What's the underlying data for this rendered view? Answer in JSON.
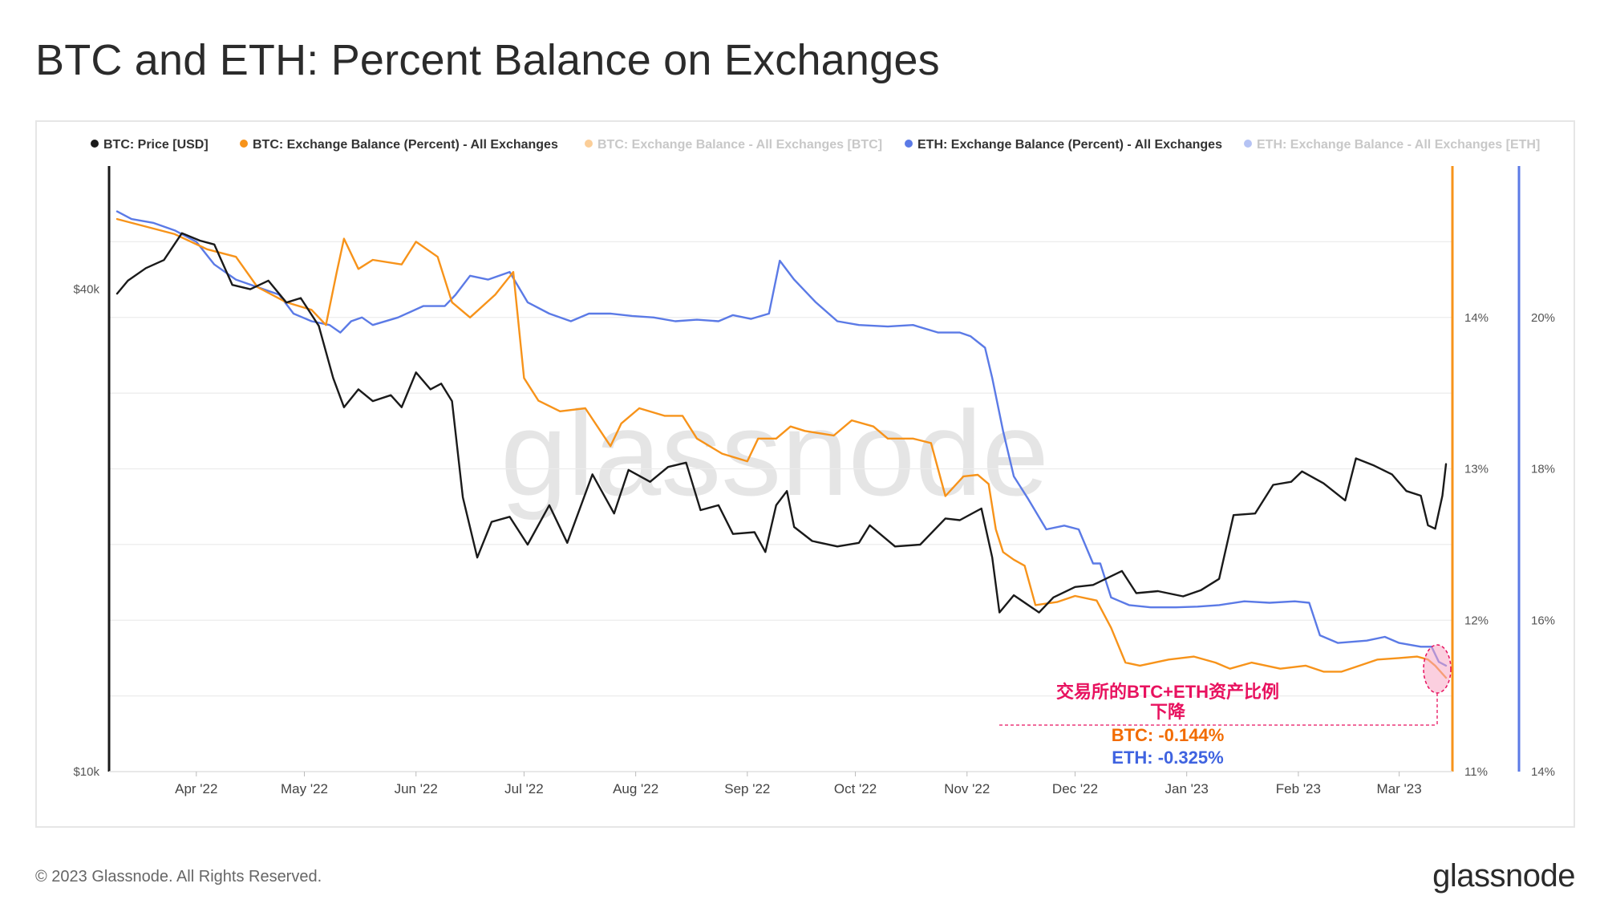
{
  "title": "BTC and ETH: Percent Balance on Exchanges",
  "footer": {
    "copyright": "© 2023 Glassnode. All Rights Reserved.",
    "logo": "glassnode"
  },
  "watermark": "glassnode",
  "colors": {
    "btc_price": "#1a1a1a",
    "btc_pct": "#f7931a",
    "btc_balance_dim": "#f8c88c",
    "eth_pct": "#5b7ae6",
    "eth_balance_dim": "#aebaf0",
    "annotation_red": "#e8125f",
    "annotation_btc": "#f26b00",
    "annotation_eth": "#3f63e0"
  },
  "chart_data": {
    "type": "line",
    "legend_position": "top",
    "legend": [
      {
        "label": "BTC: Price [USD]",
        "color": "#1a1a1a",
        "active": true
      },
      {
        "label": "BTC: Exchange Balance (Percent) - All Exchanges",
        "color": "#f7931a",
        "active": true
      },
      {
        "label": "BTC: Exchange Balance - All Exchanges [BTC]",
        "color": "#f7931a",
        "active": false
      },
      {
        "label": "ETH: Exchange Balance (Percent) - All Exchanges",
        "color": "#5b7ae6",
        "active": true
      },
      {
        "label": "ETH: Exchange Balance - All Exchanges [ETH]",
        "color": "#5b7ae6",
        "active": false
      }
    ],
    "x_ticks": [
      "Apr '22",
      "May '22",
      "Jun '22",
      "Jul '22",
      "Aug '22",
      "Sep '22",
      "Oct '22",
      "Nov '22",
      "Dec '22",
      "Jan '23",
      "Feb '23",
      "Mar '23"
    ],
    "x_range": [
      "2022-03-10",
      "2023-03-14"
    ],
    "y_left": {
      "scale": "log",
      "ticks": [
        "$40k",
        "$10k"
      ],
      "range_usd": [
        10000,
        57000
      ]
    },
    "y_right_btc": {
      "ticks": [
        "14%",
        "13%",
        "12%",
        "11%"
      ],
      "range_pct": [
        11,
        15
      ]
    },
    "y_right_eth": {
      "ticks": [
        "20%",
        "18%",
        "16%",
        "14%"
      ],
      "range_pct": [
        14,
        22
      ]
    },
    "grid": true,
    "series": [
      {
        "name": "BTC: Price [USD]",
        "axis": "left",
        "points": [
          [
            "2022-03-10",
            39500
          ],
          [
            "2022-03-13",
            41000
          ],
          [
            "2022-03-18",
            42500
          ],
          [
            "2022-03-23",
            43500
          ],
          [
            "2022-03-28",
            47000
          ],
          [
            "2022-04-02",
            46000
          ],
          [
            "2022-04-06",
            45500
          ],
          [
            "2022-04-11",
            40500
          ],
          [
            "2022-04-16",
            40000
          ],
          [
            "2022-04-21",
            41000
          ],
          [
            "2022-04-26",
            38500
          ],
          [
            "2022-04-30",
            39000
          ],
          [
            "2022-05-05",
            36000
          ],
          [
            "2022-05-09",
            31000
          ],
          [
            "2022-05-12",
            28500
          ],
          [
            "2022-05-16",
            30000
          ],
          [
            "2022-05-20",
            29000
          ],
          [
            "2022-05-25",
            29500
          ],
          [
            "2022-05-28",
            28500
          ],
          [
            "2022-06-01",
            31500
          ],
          [
            "2022-06-05",
            30000
          ],
          [
            "2022-06-08",
            30500
          ],
          [
            "2022-06-11",
            29000
          ],
          [
            "2022-06-14",
            22000
          ],
          [
            "2022-06-18",
            18500
          ],
          [
            "2022-06-22",
            20500
          ],
          [
            "2022-06-27",
            20800
          ],
          [
            "2022-07-02",
            19200
          ],
          [
            "2022-07-08",
            21500
          ],
          [
            "2022-07-13",
            19300
          ],
          [
            "2022-07-20",
            23500
          ],
          [
            "2022-07-26",
            21000
          ],
          [
            "2022-07-30",
            23800
          ],
          [
            "2022-08-05",
            23000
          ],
          [
            "2022-08-10",
            24000
          ],
          [
            "2022-08-15",
            24300
          ],
          [
            "2022-08-19",
            21200
          ],
          [
            "2022-08-24",
            21500
          ],
          [
            "2022-08-28",
            19800
          ],
          [
            "2022-09-03",
            19900
          ],
          [
            "2022-09-06",
            18800
          ],
          [
            "2022-09-09",
            21500
          ],
          [
            "2022-09-12",
            22400
          ],
          [
            "2022-09-14",
            20200
          ],
          [
            "2022-09-19",
            19400
          ],
          [
            "2022-09-26",
            19100
          ],
          [
            "2022-10-02",
            19300
          ],
          [
            "2022-10-05",
            20300
          ],
          [
            "2022-10-12",
            19100
          ],
          [
            "2022-10-19",
            19200
          ],
          [
            "2022-10-26",
            20700
          ],
          [
            "2022-10-30",
            20600
          ],
          [
            "2022-11-05",
            21300
          ],
          [
            "2022-11-08",
            18500
          ],
          [
            "2022-11-10",
            15800
          ],
          [
            "2022-11-14",
            16600
          ],
          [
            "2022-11-21",
            15800
          ],
          [
            "2022-11-25",
            16500
          ],
          [
            "2022-12-01",
            17000
          ],
          [
            "2022-12-06",
            17100
          ],
          [
            "2022-12-14",
            17800
          ],
          [
            "2022-12-18",
            16700
          ],
          [
            "2022-12-24",
            16800
          ],
          [
            "2022-12-31",
            16550
          ],
          [
            "2023-01-05",
            16850
          ],
          [
            "2023-01-10",
            17400
          ],
          [
            "2023-01-14",
            20900
          ],
          [
            "2023-01-20",
            21000
          ],
          [
            "2023-01-25",
            22800
          ],
          [
            "2023-01-30",
            23000
          ],
          [
            "2023-02-02",
            23700
          ],
          [
            "2023-02-08",
            22900
          ],
          [
            "2023-02-14",
            21800
          ],
          [
            "2023-02-17",
            24600
          ],
          [
            "2023-02-22",
            24100
          ],
          [
            "2023-02-27",
            23500
          ],
          [
            "2023-03-03",
            22400
          ],
          [
            "2023-03-07",
            22100
          ],
          [
            "2023-03-09",
            20300
          ],
          [
            "2023-03-11",
            20100
          ],
          [
            "2023-03-13",
            22100
          ],
          [
            "2023-03-14",
            24200
          ]
        ]
      },
      {
        "name": "BTC: Exchange Balance (Percent) - All Exchanges",
        "axis": "right_btc",
        "points": [
          [
            "2022-03-10",
            14.65
          ],
          [
            "2022-03-18",
            14.6
          ],
          [
            "2022-03-26",
            14.55
          ],
          [
            "2022-04-04",
            14.45
          ],
          [
            "2022-04-12",
            14.4
          ],
          [
            "2022-04-18",
            14.2
          ],
          [
            "2022-04-26",
            14.1
          ],
          [
            "2022-05-03",
            14.05
          ],
          [
            "2022-05-07",
            13.95
          ],
          [
            "2022-05-10",
            14.3
          ],
          [
            "2022-05-12",
            14.52
          ],
          [
            "2022-05-16",
            14.32
          ],
          [
            "2022-05-20",
            14.38
          ],
          [
            "2022-05-28",
            14.35
          ],
          [
            "2022-06-01",
            14.5
          ],
          [
            "2022-06-07",
            14.4
          ],
          [
            "2022-06-11",
            14.1
          ],
          [
            "2022-06-16",
            14.0
          ],
          [
            "2022-06-23",
            14.15
          ],
          [
            "2022-06-28",
            14.3
          ],
          [
            "2022-07-01",
            13.6
          ],
          [
            "2022-07-05",
            13.45
          ],
          [
            "2022-07-11",
            13.38
          ],
          [
            "2022-07-18",
            13.4
          ],
          [
            "2022-07-25",
            13.15
          ],
          [
            "2022-07-28",
            13.3
          ],
          [
            "2022-08-02",
            13.4
          ],
          [
            "2022-08-09",
            13.35
          ],
          [
            "2022-08-14",
            13.35
          ],
          [
            "2022-08-18",
            13.2
          ],
          [
            "2022-08-25",
            13.1
          ],
          [
            "2022-09-01",
            13.05
          ],
          [
            "2022-09-04",
            13.2
          ],
          [
            "2022-09-09",
            13.2
          ],
          [
            "2022-09-13",
            13.28
          ],
          [
            "2022-09-17",
            13.25
          ],
          [
            "2022-09-25",
            13.22
          ],
          [
            "2022-09-30",
            13.32
          ],
          [
            "2022-10-06",
            13.28
          ],
          [
            "2022-10-10",
            13.2
          ],
          [
            "2022-10-17",
            13.2
          ],
          [
            "2022-10-22",
            13.17
          ],
          [
            "2022-10-26",
            12.82
          ],
          [
            "2022-10-31",
            12.95
          ],
          [
            "2022-11-04",
            12.96
          ],
          [
            "2022-11-07",
            12.9
          ],
          [
            "2022-11-09",
            12.6
          ],
          [
            "2022-11-11",
            12.45
          ],
          [
            "2022-11-14",
            12.4
          ],
          [
            "2022-11-17",
            12.36
          ],
          [
            "2022-11-20",
            12.1
          ],
          [
            "2022-11-26",
            12.12
          ],
          [
            "2022-12-01",
            12.16
          ],
          [
            "2022-12-07",
            12.13
          ],
          [
            "2022-12-11",
            11.95
          ],
          [
            "2022-12-15",
            11.72
          ],
          [
            "2022-12-19",
            11.7
          ],
          [
            "2022-12-27",
            11.74
          ],
          [
            "2023-01-03",
            11.76
          ],
          [
            "2023-01-09",
            11.72
          ],
          [
            "2023-01-13",
            11.68
          ],
          [
            "2023-01-19",
            11.72
          ],
          [
            "2023-01-27",
            11.68
          ],
          [
            "2023-02-03",
            11.7
          ],
          [
            "2023-02-08",
            11.66
          ],
          [
            "2023-02-13",
            11.66
          ],
          [
            "2023-02-18",
            11.7
          ],
          [
            "2023-02-23",
            11.74
          ],
          [
            "2023-03-01",
            11.75
          ],
          [
            "2023-03-06",
            11.76
          ],
          [
            "2023-03-09",
            11.74
          ],
          [
            "2023-03-11",
            11.7
          ],
          [
            "2023-03-14",
            11.62
          ]
        ]
      },
      {
        "name": "ETH: Exchange Balance (Percent) - All Exchanges",
        "axis": "right_eth",
        "points": [
          [
            "2022-03-10",
            21.4
          ],
          [
            "2022-03-14",
            21.3
          ],
          [
            "2022-03-20",
            21.25
          ],
          [
            "2022-03-26",
            21.15
          ],
          [
            "2022-04-01",
            21.0
          ],
          [
            "2022-04-06",
            20.7
          ],
          [
            "2022-04-12",
            20.5
          ],
          [
            "2022-04-18",
            20.4
          ],
          [
            "2022-04-24",
            20.3
          ],
          [
            "2022-04-28",
            20.05
          ],
          [
            "2022-05-03",
            19.95
          ],
          [
            "2022-05-08",
            19.9
          ],
          [
            "2022-05-11",
            19.8
          ],
          [
            "2022-05-14",
            19.95
          ],
          [
            "2022-05-17",
            20.0
          ],
          [
            "2022-05-20",
            19.9
          ],
          [
            "2022-05-27",
            20.0
          ],
          [
            "2022-06-03",
            20.15
          ],
          [
            "2022-06-09",
            20.15
          ],
          [
            "2022-06-12",
            20.3
          ],
          [
            "2022-06-16",
            20.55
          ],
          [
            "2022-06-21",
            20.5
          ],
          [
            "2022-06-27",
            20.6
          ],
          [
            "2022-07-02",
            20.2
          ],
          [
            "2022-07-08",
            20.05
          ],
          [
            "2022-07-14",
            19.95
          ],
          [
            "2022-07-19",
            20.05
          ],
          [
            "2022-07-25",
            20.05
          ],
          [
            "2022-07-31",
            20.02
          ],
          [
            "2022-08-06",
            20.0
          ],
          [
            "2022-08-12",
            19.95
          ],
          [
            "2022-08-18",
            19.97
          ],
          [
            "2022-08-24",
            19.95
          ],
          [
            "2022-08-28",
            20.03
          ],
          [
            "2022-09-02",
            19.98
          ],
          [
            "2022-09-07",
            20.05
          ],
          [
            "2022-09-10",
            20.75
          ],
          [
            "2022-09-14",
            20.5
          ],
          [
            "2022-09-20",
            20.2
          ],
          [
            "2022-09-26",
            19.95
          ],
          [
            "2022-10-02",
            19.9
          ],
          [
            "2022-10-10",
            19.88
          ],
          [
            "2022-10-17",
            19.9
          ],
          [
            "2022-10-24",
            19.8
          ],
          [
            "2022-10-30",
            19.8
          ],
          [
            "2022-11-02",
            19.75
          ],
          [
            "2022-11-06",
            19.6
          ],
          [
            "2022-11-08",
            19.2
          ],
          [
            "2022-11-11",
            18.5
          ],
          [
            "2022-11-14",
            17.9
          ],
          [
            "2022-11-18",
            17.6
          ],
          [
            "2022-11-23",
            17.2
          ],
          [
            "2022-11-28",
            17.25
          ],
          [
            "2022-12-02",
            17.2
          ],
          [
            "2022-12-06",
            16.75
          ],
          [
            "2022-12-08",
            16.75
          ],
          [
            "2022-12-11",
            16.3
          ],
          [
            "2022-12-16",
            16.2
          ],
          [
            "2022-12-22",
            16.17
          ],
          [
            "2022-12-29",
            16.17
          ],
          [
            "2023-01-04",
            16.18
          ],
          [
            "2023-01-10",
            16.2
          ],
          [
            "2023-01-17",
            16.25
          ],
          [
            "2023-01-24",
            16.23
          ],
          [
            "2023-01-31",
            16.25
          ],
          [
            "2023-02-04",
            16.23
          ],
          [
            "2023-02-07",
            15.8
          ],
          [
            "2023-02-12",
            15.7
          ],
          [
            "2023-02-20",
            15.73
          ],
          [
            "2023-02-25",
            15.78
          ],
          [
            "2023-03-01",
            15.7
          ],
          [
            "2023-03-07",
            15.65
          ],
          [
            "2023-03-10",
            15.65
          ],
          [
            "2023-03-12",
            15.45
          ],
          [
            "2023-03-14",
            15.4
          ]
        ]
      }
    ],
    "annotation": {
      "line1": "交易所的BTC+ETH资产比例",
      "line2": "下降",
      "btc_change": "BTC: -0.144%",
      "eth_change": "ETH: -0.325%"
    }
  }
}
